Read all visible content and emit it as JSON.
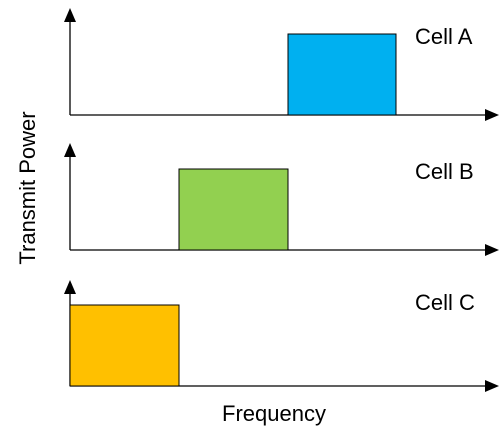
{
  "axes": {
    "y_title": "Transmit Power",
    "x_title": "Frequency"
  },
  "panels": [
    {
      "label": "Cell A",
      "color": "#00b0f0"
    },
    {
      "label": "Cell B",
      "color": "#92d050"
    },
    {
      "label": "Cell C",
      "color": "#ffc000"
    }
  ]
}
